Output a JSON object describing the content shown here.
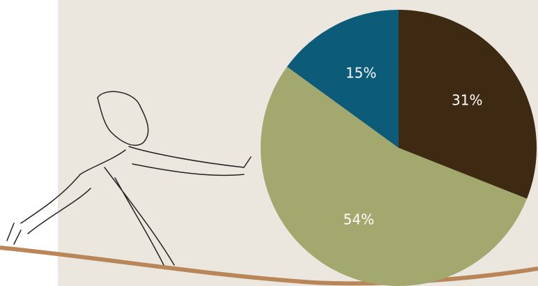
{
  "chart_data": {
    "type": "pie",
    "categories": [
      null,
      null,
      null
    ],
    "values": [
      31,
      54,
      15
    ],
    "value_labels": [
      "31%",
      "54%",
      "15%"
    ],
    "colors": [
      "#3e2a12",
      "#a2a86e",
      "#0b5b79"
    ]
  }
}
